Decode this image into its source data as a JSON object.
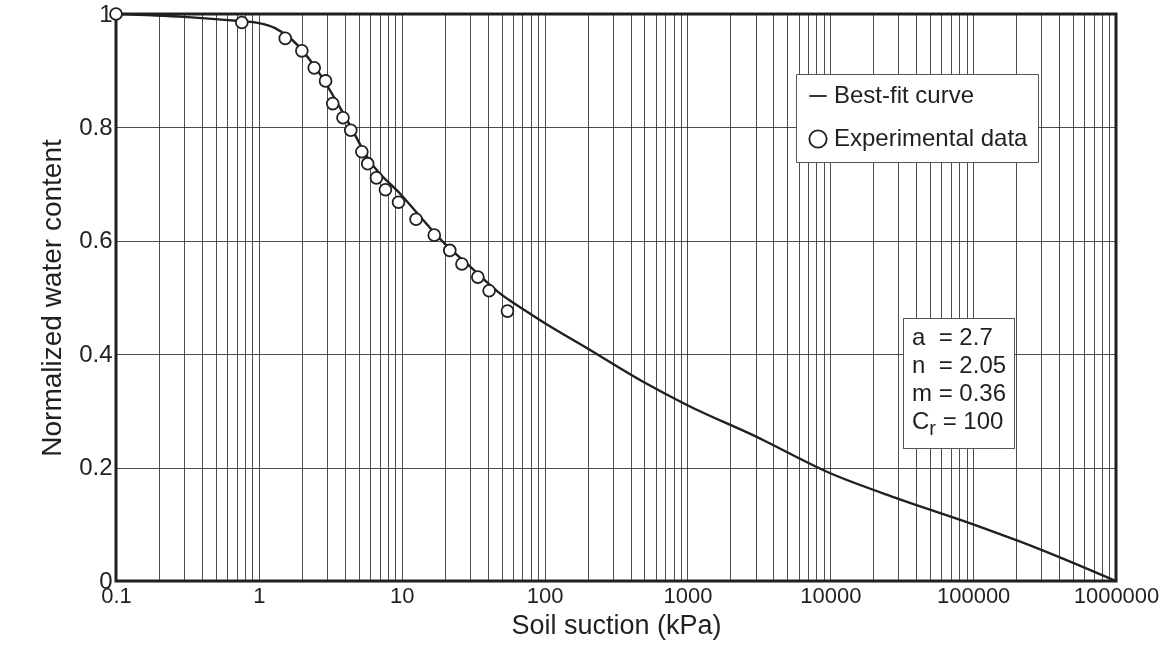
{
  "chart_data": {
    "type": "line",
    "xlabel": "Soil suction (kPa)",
    "ylabel": "Normalized water content",
    "log": "x",
    "grid": true,
    "legend": "top right",
    "xlim": [
      0.1,
      1000000
    ],
    "ylim": [
      0,
      1
    ],
    "xticks": [
      0.1,
      {
        "value": 0.2,
        "label": null
      },
      {
        "value": 0.3,
        "label": null
      },
      {
        "value": 0.4,
        "label": null
      },
      {
        "value": 0.5,
        "label": null
      },
      {
        "value": 0.6,
        "label": null
      },
      {
        "value": 0.7,
        "label": null
      },
      {
        "value": 0.8,
        "label": null
      },
      {
        "value": 0.9,
        "label": null
      },
      1,
      {
        "value": 2,
        "label": null
      },
      {
        "value": 3,
        "label": null
      },
      {
        "value": 4,
        "label": null
      },
      {
        "value": 5,
        "label": null
      },
      {
        "value": 6,
        "label": null
      },
      {
        "value": 7,
        "label": null
      },
      {
        "value": 8,
        "label": null
      },
      {
        "value": 9,
        "label": null
      },
      10,
      {
        "value": 20,
        "label": null
      },
      {
        "value": 30,
        "label": null
      },
      {
        "value": 40,
        "label": null
      },
      {
        "value": 50,
        "label": null
      },
      {
        "value": 60,
        "label": null
      },
      {
        "value": 70,
        "label": null
      },
      {
        "value": 80,
        "label": null
      },
      {
        "value": 90,
        "label": null
      },
      100,
      {
        "value": 200,
        "label": null
      },
      {
        "value": 300,
        "label": null
      },
      {
        "value": 400,
        "label": null
      },
      {
        "value": 500,
        "label": null
      },
      {
        "value": 600,
        "label": null
      },
      {
        "value": 700,
        "label": null
      },
      {
        "value": 800,
        "label": null
      },
      {
        "value": 900,
        "label": null
      },
      1000,
      {
        "value": 2000,
        "label": null
      },
      {
        "value": 3000,
        "label": null
      },
      {
        "value": 4000,
        "label": null
      },
      {
        "value": 5000,
        "label": null
      },
      {
        "value": 6000,
        "label": null
      },
      {
        "value": 7000,
        "label": null
      },
      {
        "value": 8000,
        "label": null
      },
      {
        "value": 9000,
        "label": null
      },
      10000,
      {
        "value": 20000,
        "label": null
      },
      {
        "value": 30000,
        "label": null
      },
      {
        "value": 40000,
        "label": null
      },
      {
        "value": 50000,
        "label": null
      },
      {
        "value": 60000,
        "label": null
      },
      {
        "value": 70000,
        "label": null
      },
      {
        "value": 80000,
        "label": null
      },
      {
        "value": 90000,
        "label": null
      },
      100000,
      {
        "value": 200000,
        "label": null
      },
      {
        "value": 300000,
        "label": null
      },
      {
        "value": 400000,
        "label": null
      },
      {
        "value": 500000,
        "label": null
      },
      {
        "value": 600000,
        "label": null
      },
      {
        "value": 700000,
        "label": null
      },
      {
        "value": 800000,
        "label": null
      },
      {
        "value": 900000,
        "label": null
      },
      1000000
    ],
    "yticks": [
      0,
      0.2,
      0.4,
      0.6,
      0.8,
      1
    ],
    "annotations": [
      "a  = 2.7",
      "n  = 2.05",
      "m = 0.36",
      "C$_{r}$ = 100"
    ],
    "series": [
      {
        "name": "Best-fit curve",
        "type": "line",
        "color": "#231f20",
        "line_style": "solid",
        "x": [
          0.1,
          0.3,
          0.7,
          1,
          1.3,
          1.7,
          2.5,
          4,
          6,
          10,
          20,
          30,
          50,
          70,
          100,
          200,
          500,
          1000,
          3000,
          10000,
          30000,
          100000,
          300000,
          1000000
        ],
        "values": [
          1.0,
          0.995,
          0.988,
          0.984,
          0.975,
          0.955,
          0.905,
          0.82,
          0.74,
          0.68,
          0.595,
          0.555,
          0.505,
          0.48,
          0.455,
          0.41,
          0.35,
          0.31,
          0.255,
          0.19,
          0.145,
          0.1,
          0.055,
          0.0
        ]
      },
      {
        "name": "Experimental data",
        "type": "scatter",
        "color": "#231f20",
        "marker": "circle",
        "x": [
          0.1,
          0.76,
          1.53,
          2.0,
          2.44,
          2.93,
          3.29,
          3.88,
          4.4,
          5.26,
          5.78,
          6.65,
          7.69,
          9.5,
          12.6,
          16.9,
          21.7,
          26.4,
          34.1,
          40.9,
          55
        ],
        "values": [
          1.0,
          0.985,
          0.957,
          0.935,
          0.905,
          0.882,
          0.842,
          0.817,
          0.795,
          0.757,
          0.736,
          0.711,
          0.69,
          0.668,
          0.638,
          0.61,
          0.583,
          0.559,
          0.536,
          0.512,
          0.476
        ]
      }
    ]
  }
}
